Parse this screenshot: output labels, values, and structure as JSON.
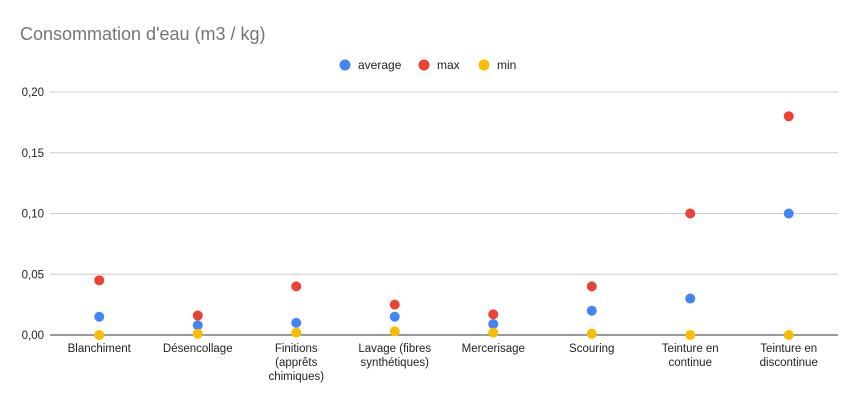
{
  "chart_data": {
    "type": "scatter",
    "title": "Consommation d'eau (m3 / kg)",
    "categories": [
      [
        "Blanchiment"
      ],
      [
        "Désencollage"
      ],
      [
        "Finitions",
        "(apprêts",
        "chimiques)"
      ],
      [
        "Lavage (fibres",
        "synthétiques)"
      ],
      [
        "Mercerisage"
      ],
      [
        "Scouring"
      ],
      [
        "Teinture en",
        "continue"
      ],
      [
        "Teinture en",
        "discontinue"
      ]
    ],
    "series": [
      {
        "name": "average",
        "color": "#4285f4",
        "values": [
          0.015,
          0.008,
          0.01,
          0.015,
          0.009,
          0.02,
          0.03,
          0.1
        ]
      },
      {
        "name": "max",
        "color": "#ea4335",
        "values": [
          0.045,
          0.016,
          0.04,
          0.025,
          0.017,
          0.04,
          0.1,
          0.18
        ]
      },
      {
        "name": "min",
        "color": "#fbbc04",
        "values": [
          0.0,
          0.001,
          0.002,
          0.003,
          0.002,
          0.001,
          0.0,
          0.0
        ]
      }
    ],
    "ylim": [
      0,
      0.2
    ],
    "yticks": [
      0,
      0.05,
      0.1,
      0.15,
      0.2
    ],
    "ytick_labels": [
      "0,00",
      "0,05",
      "0,10",
      "0,15",
      "0,20"
    ],
    "grid": true,
    "legend_position": "top-center"
  }
}
